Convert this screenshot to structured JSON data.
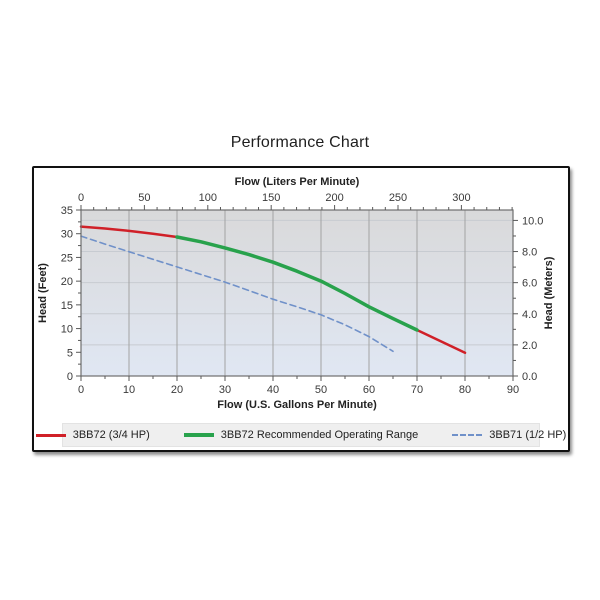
{
  "page": {
    "title": "Performance Chart"
  },
  "chart_data": {
    "type": "line",
    "title": "Performance Chart",
    "axes": {
      "bottom": {
        "label": "Flow (U.S. Gallons Per Minute)",
        "range": [
          0,
          90
        ],
        "ticks": [
          0,
          10,
          20,
          30,
          40,
          50,
          60,
          70,
          80,
          90
        ],
        "minor_step": 5
      },
      "top": {
        "label": "Flow (Liters Per Minute)",
        "range": [
          0,
          340.7
        ],
        "ticks": [
          0,
          50,
          100,
          150,
          200,
          250,
          300
        ],
        "minor_step": 10
      },
      "left": {
        "label": "Head (Feet)",
        "range": [
          0,
          35
        ],
        "ticks": [
          0,
          5,
          10,
          15,
          20,
          25,
          30,
          35
        ],
        "minor_step": 2.5
      },
      "right": {
        "label": "Head (Meters)",
        "range": [
          0,
          10.67
        ],
        "ticks": [
          0,
          2,
          4,
          6,
          8,
          10
        ],
        "tick_labels": [
          "0.0",
          "2.0",
          "4.0",
          "6.0",
          "8.0",
          "10.0"
        ],
        "minor_step": 1
      }
    },
    "grid": {
      "vertical_at_gpm": [
        10,
        20,
        30,
        40,
        50,
        60,
        70,
        80
      ],
      "vertical_color": "#a3a3a3",
      "horizontal_at_meters": [
        2,
        4,
        6,
        8,
        10
      ],
      "horizontal_color": "#c7cbd1"
    },
    "plot_background": {
      "top_color": "#d9d9da",
      "bottom_color": "#e0e7f3",
      "border_color": "#6e6e6e"
    },
    "series": [
      {
        "name": "3BB72 (3/4 HP)",
        "color": "#d02028",
        "style": "solid",
        "width": 2.5,
        "x": [
          0,
          5,
          10,
          15,
          20,
          25,
          30,
          35,
          40,
          45,
          50,
          55,
          60,
          65,
          70,
          75,
          80
        ],
        "y": [
          31.5,
          31.1,
          30.6,
          30.0,
          29.3,
          28.3,
          27.0,
          25.6,
          24.0,
          22.1,
          20.0,
          17.4,
          14.6,
          12.1,
          9.7,
          7.3,
          4.9
        ]
      },
      {
        "name": "3BB72 Recommended Operating Range",
        "color": "#28a24c",
        "style": "solid",
        "width": 3.5,
        "x": [
          20,
          25,
          30,
          35,
          40,
          45,
          50,
          55,
          60,
          65,
          70
        ],
        "y": [
          29.3,
          28.3,
          27.0,
          25.6,
          24.0,
          22.1,
          20.0,
          17.4,
          14.6,
          12.1,
          9.7
        ]
      },
      {
        "name": "3BB71 (1/2 HP)",
        "color": "#7091c9",
        "style": "dashed",
        "width": 1.6,
        "x": [
          0,
          5,
          10,
          15,
          20,
          25,
          30,
          35,
          40,
          45,
          50,
          55,
          60,
          65
        ],
        "y": [
          29.5,
          27.8,
          26.2,
          24.6,
          23.0,
          21.4,
          19.8,
          18.0,
          16.2,
          14.6,
          12.9,
          10.8,
          8.3,
          5.2
        ]
      }
    ],
    "legend": {
      "position": "bottom",
      "background": "#efefef"
    },
    "tick_color": "#595959",
    "tick_label_color": "#3a3a3a"
  }
}
